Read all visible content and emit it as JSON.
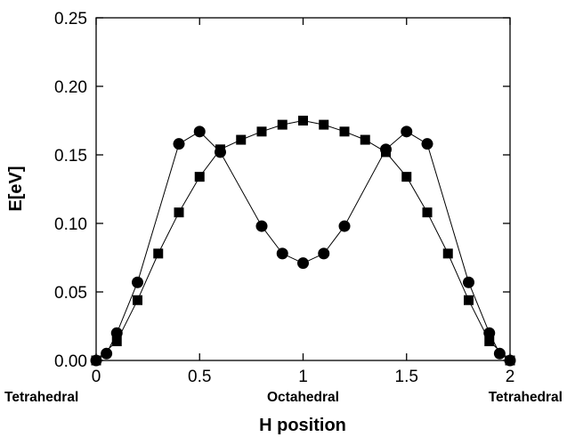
{
  "chart_data": {
    "type": "scatter",
    "title": "",
    "xlabel": "H position",
    "ylabel": "E[eV]",
    "xlim": [
      0,
      2
    ],
    "ylim": [
      0,
      0.25
    ],
    "x_ticks": [
      "0",
      "0.5",
      "1",
      "1.5",
      "2"
    ],
    "y_ticks": [
      "0.00",
      "0.05",
      "0.10",
      "0.15",
      "0.20",
      "0.25"
    ],
    "site_labels": [
      {
        "x": 0,
        "text": "Tetrahedral"
      },
      {
        "x": 1,
        "text": "Octahedral"
      },
      {
        "x": 2,
        "text": "Tetrahedral"
      }
    ],
    "grid": false,
    "line_color": "#000000",
    "marker_color": "#000000",
    "series": [
      {
        "marker": "circle",
        "x": [
          0,
          0.05,
          0.1,
          0.2,
          0.4,
          0.5,
          0.6,
          0.8,
          0.9,
          1.0,
          1.1,
          1.2,
          1.4,
          1.5,
          1.6,
          1.8,
          1.9,
          1.95,
          2.0
        ],
        "values": [
          0.0,
          0.005,
          0.02,
          0.057,
          0.158,
          0.167,
          0.152,
          0.098,
          0.078,
          0.071,
          0.078,
          0.098,
          0.154,
          0.167,
          0.158,
          0.057,
          0.02,
          0.005,
          0.0
        ]
      },
      {
        "marker": "square",
        "x": [
          0,
          0.1,
          0.2,
          0.3,
          0.4,
          0.5,
          0.6,
          0.7,
          0.8,
          0.9,
          1.0,
          1.1,
          1.2,
          1.3,
          1.4,
          1.5,
          1.6,
          1.7,
          1.8,
          1.9,
          2.0
        ],
        "values": [
          0.0,
          0.014,
          0.044,
          0.078,
          0.108,
          0.134,
          0.154,
          0.161,
          0.167,
          0.172,
          0.175,
          0.172,
          0.167,
          0.161,
          0.152,
          0.134,
          0.108,
          0.078,
          0.044,
          0.014,
          0.0
        ]
      }
    ]
  }
}
